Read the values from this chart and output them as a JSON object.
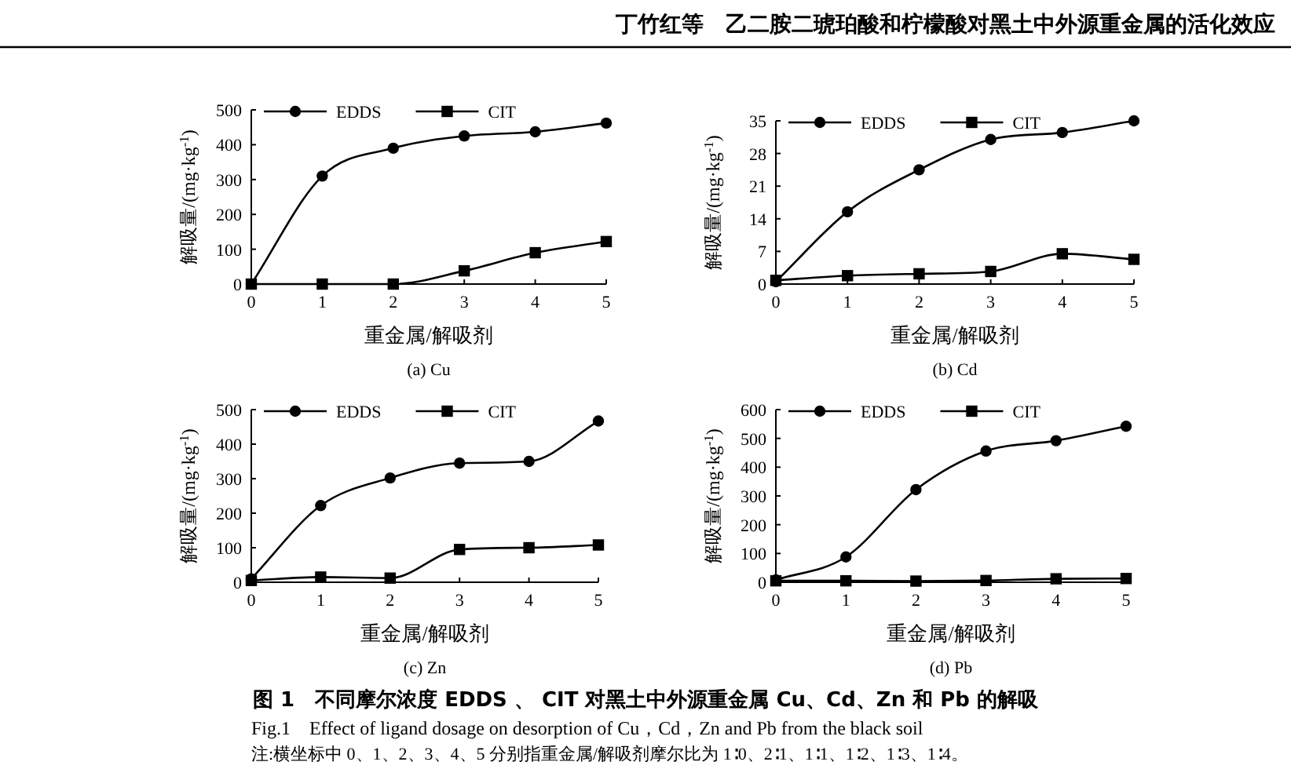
{
  "chart_data": [
    {
      "type": "line",
      "title": "(a) Cu",
      "xlabel": "重金属/解吸剂",
      "ylabel": "解吸量/(mg·kg$^{-1}$)",
      "x": [
        0,
        1,
        2,
        3,
        4,
        5
      ],
      "xlim": [
        0,
        5
      ],
      "xticks": [
        0,
        1,
        2,
        3,
        4,
        5
      ],
      "ylim": [
        0,
        500
      ],
      "yticks": [
        0,
        100,
        200,
        300,
        400,
        500
      ],
      "legend": "top",
      "series": [
        {
          "name": "EDDS",
          "color": "#000000",
          "marker": "circle",
          "values": [
            0,
            310,
            390,
            425,
            437,
            462
          ]
        },
        {
          "name": "CIT",
          "color": "#000000",
          "marker": "square",
          "values": [
            0,
            0,
            0,
            38,
            90,
            122
          ]
        }
      ],
      "annotations": [
        "丁竹红等　乙二胺二琥珀酸和柠檬酸对黑土中外源重金属的活化效应",
        "图 1　不同摩尔浓度 EDDS 、 CIT 对黑土中外源重金属 Cu、Cd、Zn 和 Pb 的解吸",
        "Fig.1　Effect of ligand dosage on desorption of Cu，Cd，Zn and Pb from the black soil",
        "注:横坐标中 0、1、2、3、4、5 分别指重金属/解吸剂摩尔比为 1∶0、2∶1、1∶1、1∶2、1∶3、1∶4。"
      ]
    },
    {
      "type": "line",
      "title": "(b) Cd",
      "xlabel": "重金属/解吸剂",
      "ylabel": "解吸量/(mg·kg$^{-1}$)",
      "x": [
        0,
        1,
        2,
        3,
        4,
        5
      ],
      "xlim": [
        0,
        5
      ],
      "xticks": [
        0,
        1,
        2,
        3,
        4,
        5
      ],
      "ylim": [
        0,
        35
      ],
      "yticks": [
        0,
        7,
        14,
        21,
        28,
        35
      ],
      "legend": "top",
      "series": [
        {
          "name": "EDDS",
          "color": "#000000",
          "marker": "circle",
          "values": [
            0.5,
            15.5,
            24.5,
            31,
            32.5,
            35
          ]
        },
        {
          "name": "CIT",
          "color": "#000000",
          "marker": "square",
          "values": [
            0.8,
            1.8,
            2.2,
            2.7,
            6.5,
            5.3
          ]
        }
      ]
    },
    {
      "type": "line",
      "title": "(c) Zn",
      "xlabel": "重金属/解吸剂",
      "ylabel": "解吸量/(mg·kg$^{-1}$)",
      "x": [
        0,
        1,
        2,
        3,
        4,
        5
      ],
      "xlim": [
        0,
        5
      ],
      "xticks": [
        0,
        1,
        2,
        3,
        4,
        5
      ],
      "ylim": [
        0,
        500
      ],
      "yticks": [
        0,
        100,
        200,
        300,
        400,
        500
      ],
      "legend": "top",
      "series": [
        {
          "name": "EDDS",
          "color": "#000000",
          "marker": "circle",
          "values": [
            10,
            222,
            302,
            345,
            350,
            467
          ]
        },
        {
          "name": "CIT",
          "color": "#000000",
          "marker": "square",
          "values": [
            5,
            15,
            12,
            95,
            100,
            108
          ]
        }
      ]
    },
    {
      "type": "line",
      "title": "(d) Pb",
      "xlabel": "重金属/解吸剂",
      "ylabel": "解吸量/(mg·kg$^{-1}$)",
      "x": [
        0,
        1,
        2,
        3,
        4,
        5
      ],
      "xlim": [
        0,
        5
      ],
      "xticks": [
        0,
        1,
        2,
        3,
        4,
        5
      ],
      "ylim": [
        0,
        600
      ],
      "yticks": [
        0,
        100,
        200,
        300,
        400,
        500,
        600
      ],
      "legend": "top",
      "series": [
        {
          "name": "EDDS",
          "color": "#000000",
          "marker": "circle",
          "values": [
            8,
            88,
            322,
            456,
            492,
            542
          ]
        },
        {
          "name": "CIT",
          "color": "#000000",
          "marker": "square",
          "values": [
            5,
            5,
            4,
            6,
            12,
            13
          ]
        }
      ]
    }
  ]
}
